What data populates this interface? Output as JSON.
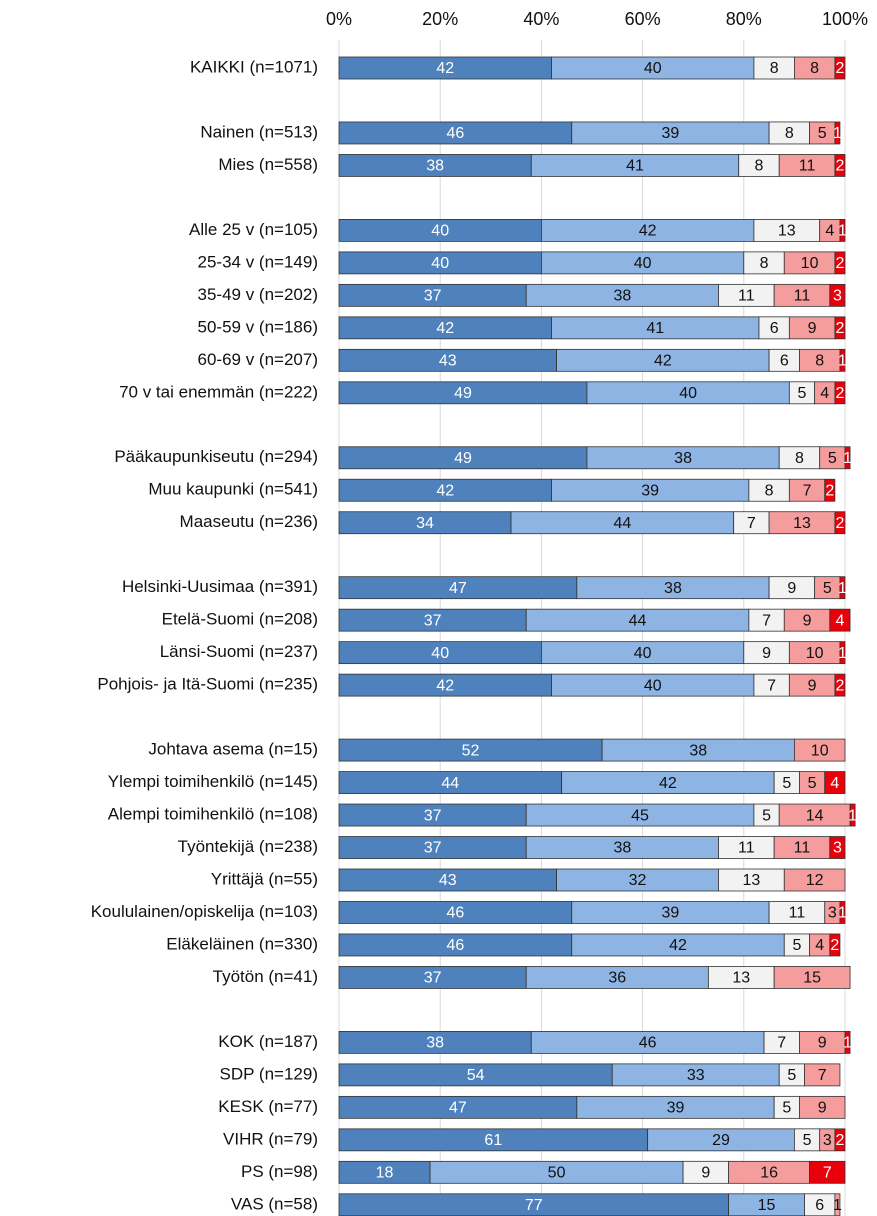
{
  "chart_data": {
    "type": "stacked-bar-horizontal",
    "categories": [
      "KAIKKI (n=1071)",
      null,
      "Nainen (n=513)",
      "Mies (n=558)",
      null,
      "Alle 25 v (n=105)",
      "25-34 v (n=149)",
      "35-49 v (n=202)",
      "50-59 v (n=186)",
      "60-69 v (n=207)",
      "70 v tai enemmän (n=222)",
      null,
      "Pääkaupunkiseutu (n=294)",
      "Muu kaupunki (n=541)",
      "Maaseutu (n=236)",
      null,
      "Helsinki-Uusimaa (n=391)",
      "Etelä-Suomi (n=208)",
      "Länsi-Suomi (n=237)",
      "Pohjois- ja Itä-Suomi (n=235)",
      null,
      "Johtava asema (n=15)",
      "Ylempi toimihenkilö (n=145)",
      "Alempi toimihenkilö (n=108)",
      "Työntekijä (n=238)",
      "Yrittäjä (n=55)",
      "Koululainen/opiskelija (n=103)",
      "Eläkeläinen (n=330)",
      "Työtön (n=41)",
      null,
      "KOK (n=187)",
      "SDP (n=129)",
      "KESK (n=77)",
      "VIHR (n=79)",
      "PS (n=98)",
      "VAS (n=58)"
    ],
    "series": [
      {
        "color": "#4f81bd",
        "values": [
          42,
          null,
          46,
          38,
          null,
          40,
          40,
          37,
          42,
          43,
          49,
          null,
          49,
          42,
          34,
          null,
          47,
          37,
          40,
          42,
          null,
          52,
          44,
          37,
          37,
          43,
          46,
          46,
          37,
          null,
          38,
          54,
          47,
          61,
          18,
          77
        ]
      },
      {
        "color": "#8eb4e3",
        "values": [
          40,
          null,
          39,
          41,
          null,
          42,
          40,
          38,
          41,
          42,
          40,
          null,
          38,
          39,
          44,
          null,
          38,
          44,
          40,
          40,
          null,
          38,
          42,
          45,
          38,
          32,
          39,
          42,
          36,
          null,
          46,
          33,
          39,
          29,
          50,
          15
        ]
      },
      {
        "color": "#f2f2f2",
        "values": [
          8,
          null,
          8,
          8,
          null,
          13,
          8,
          11,
          6,
          6,
          5,
          null,
          8,
          8,
          7,
          null,
          9,
          7,
          9,
          7,
          null,
          null,
          5,
          5,
          11,
          13,
          11,
          5,
          13,
          null,
          7,
          5,
          5,
          5,
          9,
          6
        ]
      },
      {
        "color": "#f59d9d",
        "values": [
          8,
          null,
          5,
          11,
          null,
          4,
          10,
          11,
          9,
          8,
          4,
          null,
          5,
          7,
          13,
          null,
          5,
          9,
          10,
          9,
          null,
          10,
          5,
          14,
          11,
          12,
          3,
          4,
          15,
          null,
          9,
          7,
          9,
          3,
          16,
          1
        ]
      },
      {
        "color": "#e8000b",
        "values": [
          2,
          null,
          1,
          2,
          null,
          1,
          2,
          3,
          2,
          1,
          2,
          null,
          1,
          2,
          2,
          null,
          1,
          4,
          1,
          2,
          null,
          null,
          4,
          1,
          3,
          null,
          1,
          2,
          null,
          null,
          1,
          null,
          null,
          2,
          7,
          null
        ]
      }
    ],
    "xlim": [
      0,
      100
    ],
    "xticks": [
      {
        "value": 0,
        "label": "0%"
      },
      {
        "value": 20,
        "label": "20%"
      },
      {
        "value": 40,
        "label": "40%"
      },
      {
        "value": 60,
        "label": "60%"
      },
      {
        "value": 80,
        "label": "80%"
      },
      {
        "value": 100,
        "label": "100%"
      }
    ],
    "grid": true
  }
}
